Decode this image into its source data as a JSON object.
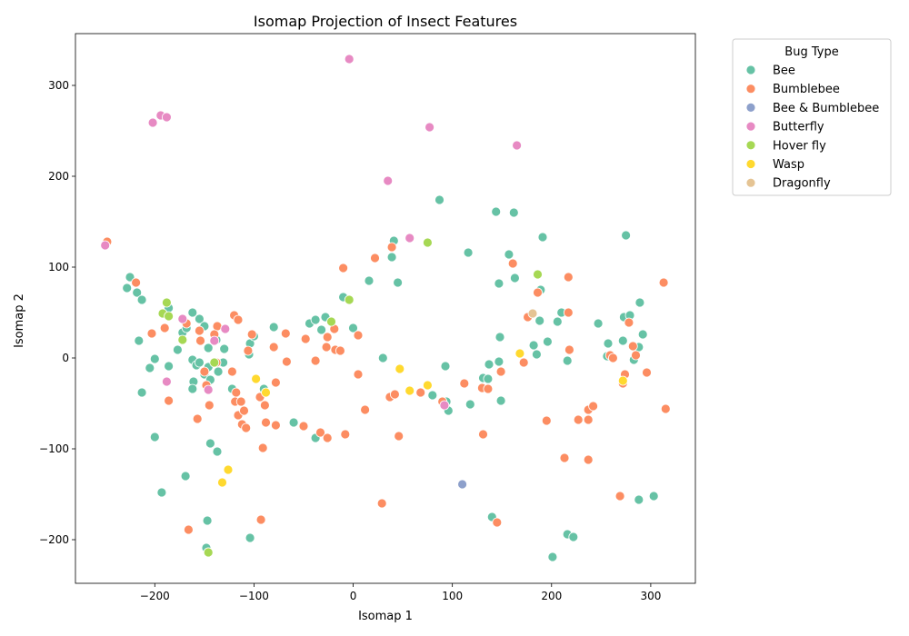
{
  "chart_data": {
    "type": "scatter",
    "title": "Isomap Projection of Insect Features",
    "xlabel": "Isomap 1",
    "ylabel": "Isomap 2",
    "xlim": [
      -280,
      345
    ],
    "ylim": [
      -248,
      357
    ],
    "xticks": [
      -200,
      -100,
      0,
      100,
      200,
      300
    ],
    "yticks": [
      -200,
      -100,
      0,
      100,
      200,
      300
    ],
    "grid": false,
    "legend": {
      "title": "Bug Type",
      "placement": "outside-top-right"
    },
    "series": [
      {
        "name": "Bee",
        "color": "#66c2a5",
        "points": [
          [
            -225,
            89
          ],
          [
            -228,
            77
          ],
          [
            -218,
            72
          ],
          [
            -213,
            64
          ],
          [
            -216,
            19
          ],
          [
            -205,
            -11
          ],
          [
            -200,
            -1
          ],
          [
            -213,
            -38
          ],
          [
            -200,
            -87
          ],
          [
            -193,
            -148
          ],
          [
            -186,
            55
          ],
          [
            -186,
            -9
          ],
          [
            -172,
            28
          ],
          [
            -168,
            33
          ],
          [
            -177,
            9
          ],
          [
            -162,
            50
          ],
          [
            -155,
            43
          ],
          [
            -150,
            35
          ],
          [
            -162,
            -2
          ],
          [
            -158,
            -8
          ],
          [
            -155,
            -5
          ],
          [
            -161,
            -26
          ],
          [
            -162,
            -34
          ],
          [
            -150,
            -18
          ],
          [
            -146,
            -10
          ],
          [
            -144,
            -24
          ],
          [
            -146,
            11
          ],
          [
            -138,
            20
          ],
          [
            -136,
            -15
          ],
          [
            -130,
            10
          ],
          [
            -131,
            -5
          ],
          [
            -137,
            -103
          ],
          [
            -144,
            -94
          ],
          [
            -147,
            -179
          ],
          [
            -148,
            -209
          ],
          [
            -146,
            -214
          ],
          [
            -169,
            -130
          ],
          [
            -122,
            -34
          ],
          [
            -104,
            16
          ],
          [
            -105,
            4
          ],
          [
            -100,
            24
          ],
          [
            -104,
            -198
          ],
          [
            -90,
            -34
          ],
          [
            -80,
            34
          ],
          [
            -60,
            -71
          ],
          [
            -44,
            38
          ],
          [
            -38,
            42
          ],
          [
            -32,
            31
          ],
          [
            -28,
            45
          ],
          [
            -38,
            -88
          ],
          [
            -10,
            67
          ],
          [
            0,
            33
          ],
          [
            16,
            85
          ],
          [
            30,
            0
          ],
          [
            39,
            111
          ],
          [
            41,
            129
          ],
          [
            45,
            83
          ],
          [
            87,
            174
          ],
          [
            93,
            -9
          ],
          [
            94,
            -48
          ],
          [
            96,
            -58
          ],
          [
            80,
            -41
          ],
          [
            116,
            116
          ],
          [
            118,
            -51
          ],
          [
            131,
            -22
          ],
          [
            137,
            -7
          ],
          [
            136,
            -23
          ],
          [
            140,
            -175
          ],
          [
            144,
            161
          ],
          [
            147,
            82
          ],
          [
            148,
            23
          ],
          [
            147,
            -4
          ],
          [
            149,
            -47
          ],
          [
            157,
            114
          ],
          [
            162,
            160
          ],
          [
            163,
            88
          ],
          [
            182,
            14
          ],
          [
            185,
            4
          ],
          [
            188,
            41
          ],
          [
            189,
            75
          ],
          [
            191,
            133
          ],
          [
            196,
            18
          ],
          [
            201,
            -219
          ],
          [
            206,
            40
          ],
          [
            210,
            50
          ],
          [
            216,
            -3
          ],
          [
            216,
            -194
          ],
          [
            222,
            -197
          ],
          [
            247,
            38
          ],
          [
            256,
            2
          ],
          [
            257,
            16
          ],
          [
            272,
            19
          ],
          [
            273,
            45
          ],
          [
            275,
            135
          ],
          [
            279,
            47
          ],
          [
            283,
            -2
          ],
          [
            288,
            12
          ],
          [
            289,
            61
          ],
          [
            292,
            26
          ],
          [
            288,
            -156
          ],
          [
            303,
            -152
          ]
        ]
      },
      {
        "name": "Bumblebee",
        "color": "#fc8d62",
        "points": [
          [
            -248,
            128
          ],
          [
            -219,
            83
          ],
          [
            -203,
            27
          ],
          [
            -190,
            33
          ],
          [
            -186,
            -47
          ],
          [
            -168,
            38
          ],
          [
            -155,
            30
          ],
          [
            -154,
            19
          ],
          [
            -150,
            -15
          ],
          [
            -148,
            -30
          ],
          [
            -145,
            -52
          ],
          [
            -138,
            -5
          ],
          [
            -137,
            35
          ],
          [
            -140,
            26
          ],
          [
            -157,
            -67
          ],
          [
            -166,
            -189
          ],
          [
            -122,
            -15
          ],
          [
            -120,
            47
          ],
          [
            -116,
            42
          ],
          [
            -118,
            -38
          ],
          [
            -119,
            -48
          ],
          [
            -116,
            -63
          ],
          [
            -113,
            -48
          ],
          [
            -112,
            -73
          ],
          [
            -110,
            -58
          ],
          [
            -108,
            -77
          ],
          [
            -106,
            8
          ],
          [
            -102,
            26
          ],
          [
            -94,
            -43
          ],
          [
            -91,
            -99
          ],
          [
            -93,
            -178
          ],
          [
            -89,
            -52
          ],
          [
            -88,
            -71
          ],
          [
            -80,
            12
          ],
          [
            -78,
            -27
          ],
          [
            -78,
            -74
          ],
          [
            -67,
            -4
          ],
          [
            -68,
            27
          ],
          [
            -50,
            -75
          ],
          [
            -48,
            21
          ],
          [
            -38,
            -3
          ],
          [
            -33,
            -82
          ],
          [
            -27,
            12
          ],
          [
            -26,
            23
          ],
          [
            -26,
            -88
          ],
          [
            -18,
            9
          ],
          [
            -19,
            32
          ],
          [
            -13,
            8
          ],
          [
            -10,
            99
          ],
          [
            -8,
            -84
          ],
          [
            5,
            25
          ],
          [
            5,
            -18
          ],
          [
            12,
            -57
          ],
          [
            22,
            110
          ],
          [
            29,
            -160
          ],
          [
            37,
            -43
          ],
          [
            39,
            122
          ],
          [
            42,
            -40
          ],
          [
            46,
            -86
          ],
          [
            68,
            -38
          ],
          [
            90,
            -48
          ],
          [
            112,
            -28
          ],
          [
            130,
            -33
          ],
          [
            131,
            -84
          ],
          [
            136,
            -34
          ],
          [
            145,
            -181
          ],
          [
            149,
            -15
          ],
          [
            161,
            104
          ],
          [
            172,
            -5
          ],
          [
            176,
            45
          ],
          [
            186,
            72
          ],
          [
            195,
            -69
          ],
          [
            213,
            -110
          ],
          [
            217,
            89
          ],
          [
            217,
            50
          ],
          [
            218,
            9
          ],
          [
            227,
            -68
          ],
          [
            237,
            -68
          ],
          [
            237,
            -57
          ],
          [
            237,
            -112
          ],
          [
            242,
            -53
          ],
          [
            259,
            3
          ],
          [
            262,
            0
          ],
          [
            269,
            -152
          ],
          [
            272,
            -28
          ],
          [
            274,
            -18
          ],
          [
            278,
            39
          ],
          [
            282,
            13
          ],
          [
            285,
            3
          ],
          [
            296,
            -16
          ],
          [
            313,
            83
          ],
          [
            315,
            -56
          ]
        ]
      },
      {
        "name": "Bee & Bumblebee",
        "color": "#8da0cb",
        "points": [
          [
            110,
            -139
          ]
        ]
      },
      {
        "name": "Butterfly",
        "color": "#e78ac3",
        "points": [
          [
            -250,
            124
          ],
          [
            -202,
            259
          ],
          [
            -194,
            267
          ],
          [
            -188,
            265
          ],
          [
            -172,
            43
          ],
          [
            -188,
            -26
          ],
          [
            -146,
            -35
          ],
          [
            -140,
            19
          ],
          [
            -129,
            32
          ],
          [
            -4,
            329
          ],
          [
            35,
            195
          ],
          [
            57,
            132
          ],
          [
            77,
            254
          ],
          [
            165,
            234
          ],
          [
            92,
            -52
          ]
        ]
      },
      {
        "name": "Hover fly",
        "color": "#a6d854",
        "points": [
          [
            -188,
            61
          ],
          [
            -192,
            49
          ],
          [
            -186,
            46
          ],
          [
            -172,
            20
          ],
          [
            -140,
            -5
          ],
          [
            -146,
            -214
          ],
          [
            -22,
            40
          ],
          [
            -4,
            64
          ],
          [
            75,
            127
          ],
          [
            186,
            92
          ]
        ]
      },
      {
        "name": "Wasp",
        "color": "#ffd92f",
        "points": [
          [
            -98,
            -23
          ],
          [
            -88,
            -38
          ],
          [
            -126,
            -123
          ],
          [
            -132,
            -137
          ],
          [
            47,
            -12
          ],
          [
            57,
            -36
          ],
          [
            75,
            -30
          ],
          [
            168,
            5
          ],
          [
            272,
            -25
          ]
        ]
      },
      {
        "name": "Dragonfly",
        "color": "#e5c494",
        "points": [
          [
            181,
            49
          ]
        ]
      }
    ]
  }
}
